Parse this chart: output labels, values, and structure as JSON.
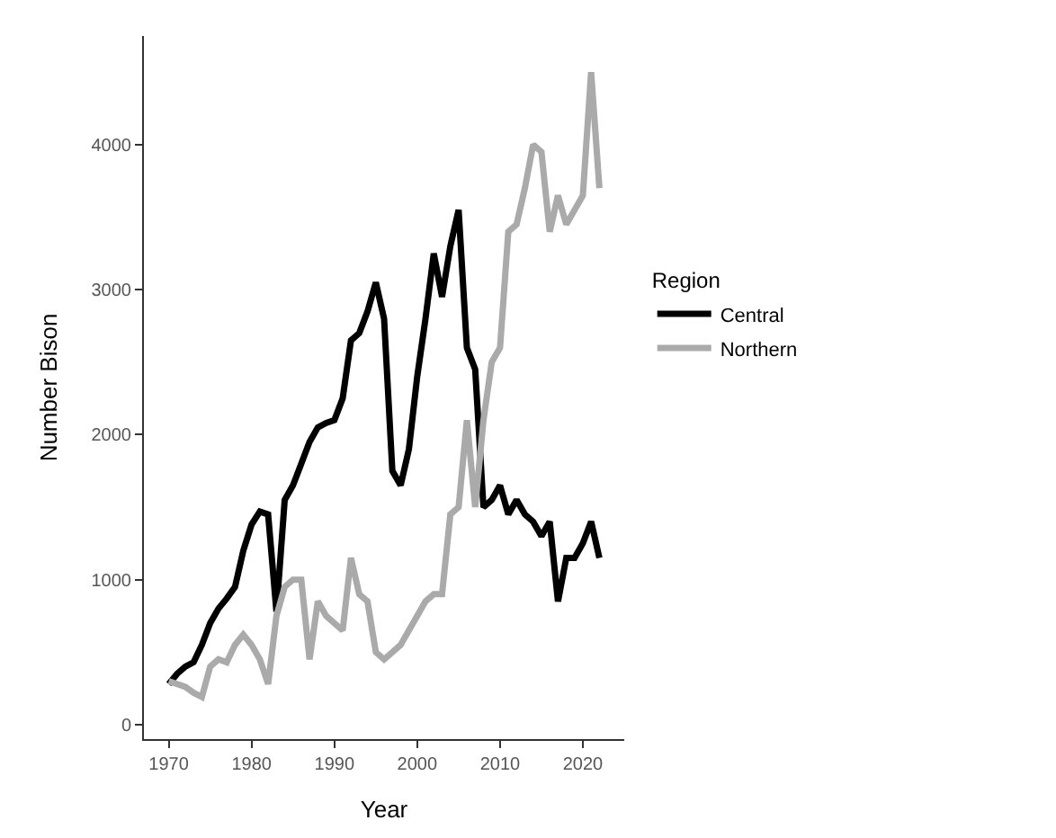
{
  "chart_data": {
    "type": "line",
    "xlabel": "Year",
    "ylabel": "Number Bison",
    "legend_title": "Region",
    "legend": "right",
    "line_style": "solid",
    "x": [
      1970,
      1971,
      1972,
      1973,
      1974,
      1975,
      1976,
      1977,
      1978,
      1979,
      1980,
      1981,
      1982,
      1983,
      1984,
      1985,
      1986,
      1987,
      1988,
      1989,
      1990,
      1991,
      1992,
      1993,
      1994,
      1995,
      1996,
      1997,
      1998,
      1999,
      2000,
      2001,
      2002,
      2003,
      2004,
      2005,
      2006,
      2007,
      2008,
      2009,
      2010,
      2011,
      2012,
      2013,
      2014,
      2015,
      2016,
      2017,
      2018,
      2019,
      2020,
      2021,
      2022
    ],
    "xlim": [
      1967,
      2025
    ],
    "xticks": [
      1970,
      1980,
      1990,
      2000,
      2010,
      2020
    ],
    "ylim": [
      -100,
      4750
    ],
    "yticks": [
      0,
      1000,
      2000,
      3000,
      4000
    ],
    "series": [
      {
        "name": "Central",
        "color": "#000000",
        "values": [
          280,
          350,
          400,
          430,
          550,
          700,
          800,
          870,
          950,
          1200,
          1380,
          1470,
          1450,
          780,
          1550,
          1650,
          1800,
          1950,
          2050,
          2080,
          2100,
          2250,
          2650,
          2700,
          2850,
          3050,
          2800,
          1750,
          1650,
          1900,
          2400,
          2800,
          3250,
          2950,
          3300,
          3550,
          2600,
          2450,
          1500,
          1550,
          1650,
          1450,
          1550,
          1450,
          1400,
          1300,
          1400,
          850,
          1150,
          1150,
          1250,
          1400,
          1150
        ]
      },
      {
        "name": "Northern",
        "color": "#aaaaaa",
        "values": [
          300,
          280,
          260,
          220,
          190,
          400,
          450,
          430,
          550,
          620,
          550,
          450,
          280,
          750,
          950,
          1000,
          1000,
          450,
          850,
          750,
          700,
          650,
          1150,
          900,
          850,
          500,
          450,
          500,
          550,
          650,
          750,
          850,
          900,
          900,
          1450,
          1500,
          2100,
          1500,
          2100,
          2500,
          2600,
          3400,
          3450,
          3700,
          4000,
          3950,
          3400,
          3650,
          3450,
          3550,
          3650,
          4500,
          3700
        ]
      }
    ]
  }
}
